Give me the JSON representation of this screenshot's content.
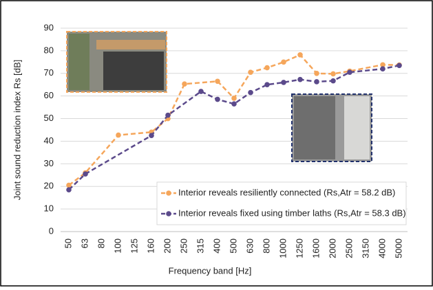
{
  "chart_data": {
    "type": "line",
    "xlabel": "Frequency band [Hz]",
    "ylabel": "Joint sound reduction index Rs [dB]",
    "categories": [
      "50",
      "63",
      "80",
      "100",
      "125",
      "160",
      "200",
      "250",
      "315",
      "400",
      "500",
      "630",
      "800",
      "1000",
      "1250",
      "1600",
      "2000",
      "2500",
      "3150",
      "4000",
      "5000"
    ],
    "series": [
      {
        "name": "Interior reveals resiliently connected (Rs,Atr = 58.2 dB)",
        "color": "#f5a65b",
        "values": [
          20.5,
          26,
          null,
          42.7,
          null,
          44,
          50,
          65.3,
          null,
          66.5,
          59,
          70.5,
          72.5,
          75,
          78.2,
          70,
          69.8,
          71,
          null,
          73.8,
          73.7
        ]
      },
      {
        "name": "Interior reveals fixed using timber laths (Rs,Atr = 58.3 dB)",
        "color": "#5b4a8b",
        "values": [
          18.5,
          25.5,
          null,
          null,
          null,
          42.5,
          51.5,
          null,
          62,
          58.5,
          56.5,
          61.5,
          65,
          66,
          67.3,
          66.3,
          66.7,
          70.5,
          null,
          72,
          73.5
        ]
      }
    ],
    "connect_gaps": true,
    "ylim": [
      0,
      90
    ],
    "yticks": [
      0,
      10,
      20,
      30,
      40,
      50,
      60,
      70,
      80,
      90
    ],
    "grid": true
  }
}
